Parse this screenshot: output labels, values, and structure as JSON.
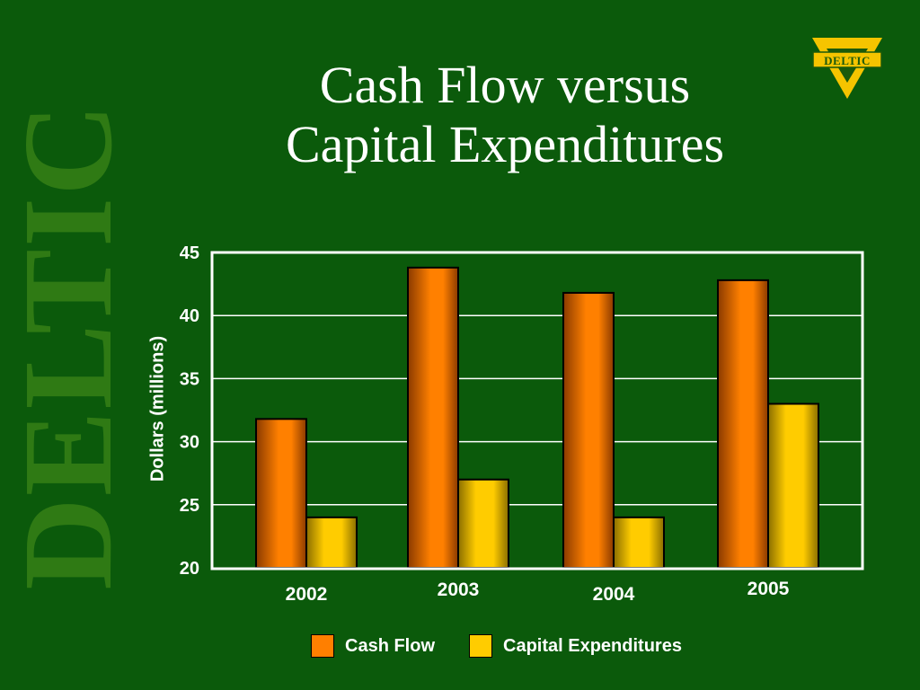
{
  "watermark": "DELTIC",
  "logo": {
    "text": "DELTIC"
  },
  "colors": {
    "background": "#0b5a0b",
    "cash_flow": "#ff7f00",
    "capital_expenditures": "#ffcc00",
    "gridline": "#ffffff"
  },
  "chart_data": {
    "type": "bar",
    "title": "Cash Flow versus Capital Expenditures",
    "title_lines": [
      "Cash Flow versus",
      "Capital Expenditures"
    ],
    "ylabel": "Dollars (millions)",
    "xlabel": "",
    "categories": [
      "2002",
      "2003",
      "2004",
      "2005"
    ],
    "series": [
      {
        "name": "Cash Flow",
        "values": [
          31.8,
          43.8,
          41.8,
          42.8
        ]
      },
      {
        "name": "Capital Expenditures",
        "values": [
          24.0,
          27.0,
          24.0,
          33.0
        ]
      }
    ],
    "ylim": [
      20,
      45
    ],
    "yticks": [
      "20",
      "25",
      "30",
      "35",
      "40",
      "45"
    ],
    "grid": true,
    "legend_position": "bottom"
  }
}
